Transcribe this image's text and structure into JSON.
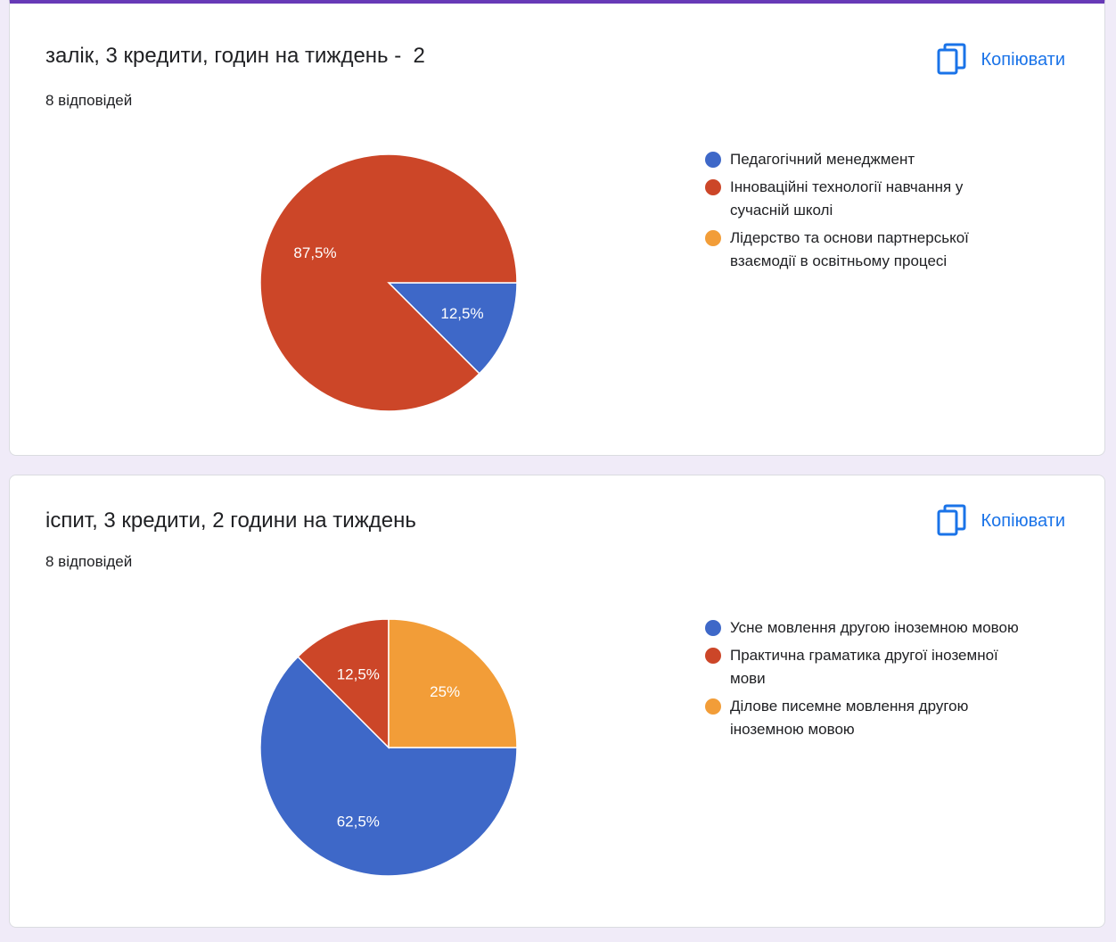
{
  "card1": {
    "title": "залік, 3 кредити, годин на тиждень -  2",
    "responses": "8 відповідей",
    "copy_label": "Копіювати"
  },
  "card2": {
    "title": "іспит, 3 кредити, 2 години на тиждень",
    "responses": "8 відповідей",
    "copy_label": "Копіювати"
  },
  "colors": {
    "accent": "#673ab7",
    "link": "#1a73e8"
  },
  "chart_data": [
    {
      "type": "pie",
      "legend_position": "right",
      "series": [
        {
          "name": "Педагогічний менеджмент",
          "value": 12.5,
          "label": "12,5%",
          "color": "#3e68c8"
        },
        {
          "name": "Інноваційні технології навчання у сучасній школі",
          "value": 87.5,
          "label": "87,5%",
          "color": "#cc4628"
        },
        {
          "name": "Лідерство та основи партнерської взаємодії в освітньому процесі",
          "value": 0,
          "label": "",
          "color": "#f29d38"
        }
      ]
    },
    {
      "type": "pie",
      "legend_position": "right",
      "series": [
        {
          "name": "Усне мовлення другою іноземною мовою",
          "value": 62.5,
          "label": "62,5%",
          "color": "#3e68c8"
        },
        {
          "name": "Практична граматика другої іноземної мови",
          "value": 12.5,
          "label": "12,5%",
          "color": "#cc4628"
        },
        {
          "name": "Ділове писемне мовлення другою іноземною мовою",
          "value": 25,
          "label": "25%",
          "color": "#f29d38"
        }
      ]
    }
  ]
}
